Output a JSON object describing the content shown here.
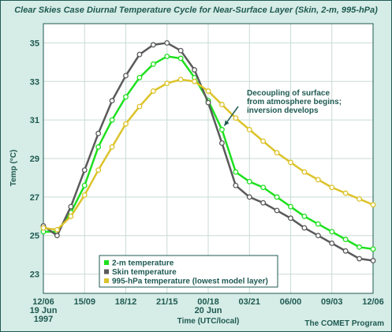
{
  "chart_data": {
    "type": "line",
    "title": "Clear Skies Case Diurnal Temperature Cycle for Near-Surface Layer (Skin, 2-m, 995-hPa)",
    "xlabel": "Time (UTC/local)",
    "ylabel": "Temp (°C)",
    "ylim": [
      22,
      36
    ],
    "yticks": [
      23,
      25,
      27,
      29,
      31,
      33,
      35
    ],
    "xlim": [
      0,
      24
    ],
    "xticks": [
      {
        "x": 0,
        "lines": [
          "12/06",
          "19 Jun",
          "1997"
        ]
      },
      {
        "x": 3,
        "lines": [
          "15/09"
        ]
      },
      {
        "x": 6,
        "lines": [
          "18/12"
        ]
      },
      {
        "x": 9,
        "lines": [
          "21/15"
        ]
      },
      {
        "x": 12,
        "lines": [
          "00/18",
          "20 Jun"
        ]
      },
      {
        "x": 15,
        "lines": [
          "03/21"
        ]
      },
      {
        "x": 18,
        "lines": [
          "06/00"
        ]
      },
      {
        "x": 21,
        "lines": [
          "09/03"
        ]
      },
      {
        "x": 24,
        "lines": [
          "12/06"
        ]
      }
    ],
    "grid": true,
    "legend_position": "bottom-left",
    "series": [
      {
        "name": "2-m temperature",
        "color": "#1ee01e",
        "x": [
          0,
          1,
          2,
          3,
          4,
          5,
          6,
          7,
          8,
          9,
          10,
          11,
          12,
          13,
          14,
          15,
          16,
          17,
          18,
          19,
          20,
          21,
          22,
          23,
          24
        ],
        "values": [
          25.2,
          25.2,
          26.2,
          27.6,
          29.6,
          31.0,
          32.2,
          33.2,
          33.9,
          34.3,
          34.2,
          33.2,
          32.0,
          30.5,
          28.3,
          27.8,
          27.5,
          27.0,
          26.5,
          26.0,
          25.6,
          25.2,
          24.8,
          24.4,
          24.3
        ]
      },
      {
        "name": "Skin temperature",
        "color": "#5a5a5a",
        "x": [
          0,
          1,
          2,
          3,
          4,
          5,
          6,
          7,
          8,
          9,
          10,
          11,
          12,
          13,
          14,
          15,
          16,
          17,
          18,
          19,
          20,
          21,
          22,
          23,
          24
        ],
        "values": [
          25.5,
          25.0,
          26.5,
          28.4,
          30.3,
          32.0,
          33.3,
          34.4,
          34.9,
          35.0,
          34.6,
          33.6,
          31.9,
          29.8,
          27.6,
          27.0,
          26.7,
          26.3,
          25.9,
          25.4,
          25.0,
          24.6,
          24.2,
          23.8,
          23.7
        ]
      },
      {
        "name": "995-hPa temperature (lowest model layer)",
        "color": "#dcc32a",
        "x": [
          0,
          1,
          2,
          3,
          4,
          5,
          6,
          7,
          8,
          9,
          10,
          11,
          12,
          13,
          14,
          15,
          16,
          17,
          18,
          19,
          20,
          21,
          22,
          23,
          24
        ],
        "values": [
          25.4,
          25.3,
          26.0,
          27.1,
          28.4,
          29.6,
          30.8,
          31.7,
          32.5,
          32.9,
          33.1,
          33.0,
          32.5,
          31.8,
          31.1,
          30.5,
          29.9,
          29.3,
          28.8,
          28.3,
          27.9,
          27.5,
          27.2,
          26.9,
          26.6
        ]
      }
    ],
    "annotations": [
      {
        "lines": [
          "Decoupling of surface",
          "from atmosphere begins;",
          "inversion develops"
        ],
        "arrow_to": {
          "x": 13.0,
          "y": 30.7
        }
      }
    ]
  },
  "credit": "The COMET Program"
}
